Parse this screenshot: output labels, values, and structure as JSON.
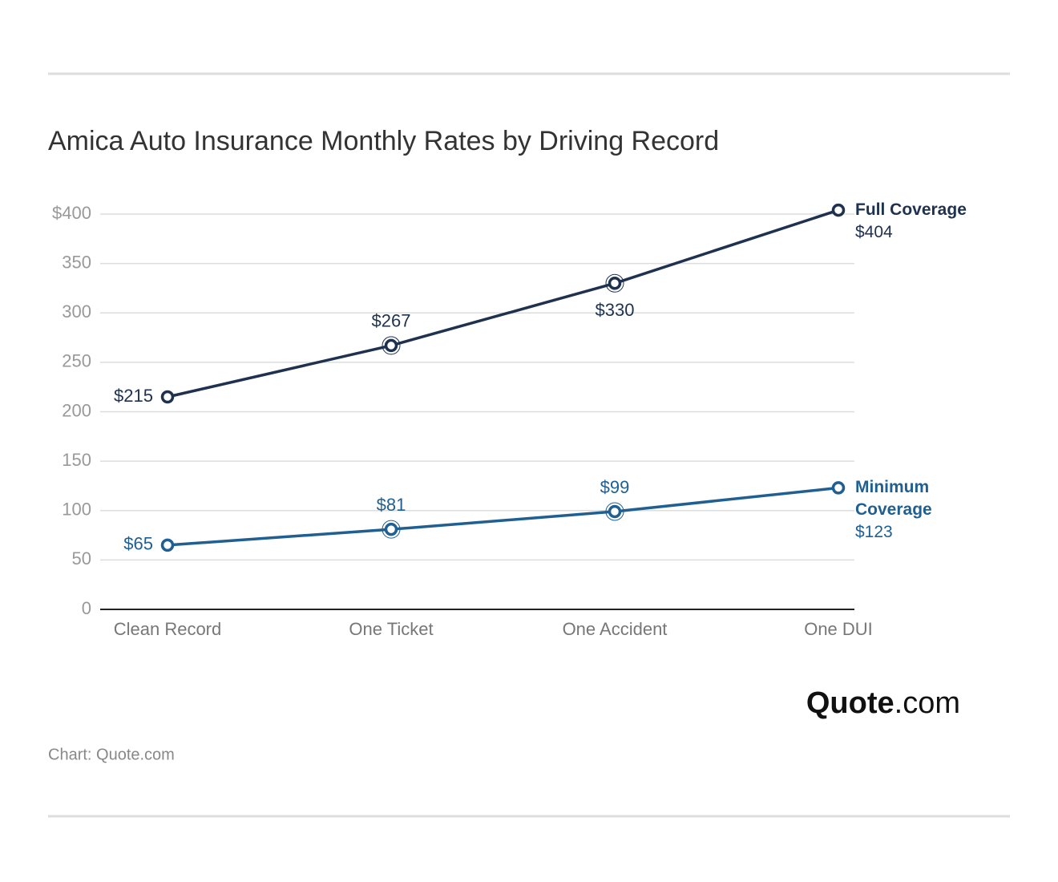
{
  "title": "Amica Auto Insurance Monthly Rates by Driving Record",
  "source": "Chart: Quote.com",
  "logo_main": "Quote",
  "logo_suffix": ".com",
  "chart_data": {
    "type": "line",
    "categories": [
      "Clean Record",
      "One Ticket",
      "One Accident",
      "One DUI"
    ],
    "series": [
      {
        "name": "Full Coverage",
        "color": "#1e3250",
        "values": [
          215,
          267,
          330,
          404
        ],
        "value_labels": [
          "$215",
          "$267",
          "$330",
          "$404"
        ]
      },
      {
        "name": "Minimum Coverage",
        "color": "#1f5f92",
        "values": [
          65,
          81,
          99,
          123
        ],
        "value_labels": [
          "$65",
          "$81",
          "$99",
          "$123"
        ]
      }
    ],
    "ylim": [
      0,
      400
    ],
    "yticks": [
      0,
      50,
      100,
      150,
      200,
      250,
      300,
      350,
      {
        "value": 400,
        "label": "$400"
      }
    ],
    "grid": true
  }
}
